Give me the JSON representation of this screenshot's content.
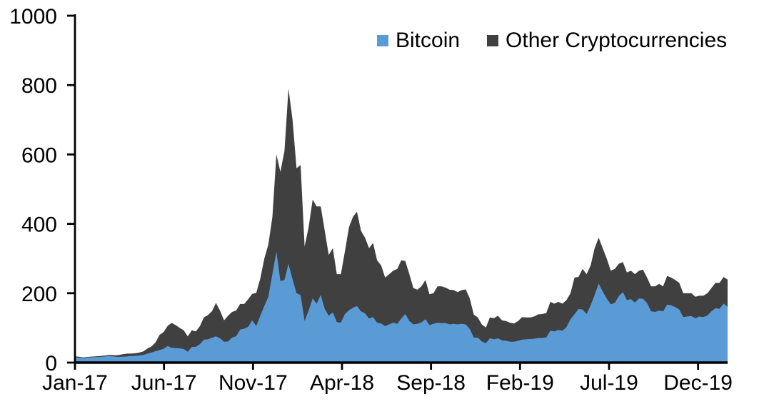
{
  "figure": {
    "background": "#ffffff",
    "text_color": "#000000",
    "legend": [
      {
        "label": "Bitcoin",
        "color": "#5B9BD5"
      },
      {
        "label": "Other Cryptocurrencies",
        "color": "#404040"
      }
    ]
  },
  "chart_data": {
    "type": "area",
    "stacked": true,
    "title": "",
    "xlabel": "",
    "ylabel": "",
    "grid": false,
    "legend_position": "top-right",
    "x_unit": "weekly points from Jan-2017 to mid-Feb-2020, values in billions USD",
    "y_axis": {
      "range": [
        0,
        1000
      ],
      "ticks": [
        0,
        200,
        400,
        600,
        800,
        1000
      ]
    },
    "x_axis": {
      "end_month": 36.66,
      "ticks": [
        {
          "label": "Jan-17",
          "month": 0
        },
        {
          "label": "Jun-17",
          "month": 5
        },
        {
          "label": "Nov-17",
          "month": 10
        },
        {
          "label": "Apr-18",
          "month": 15
        },
        {
          "label": "Sep-18",
          "month": 20
        },
        {
          "label": "Feb-19",
          "month": 25
        },
        {
          "label": "Jul-19",
          "month": 30
        },
        {
          "label": "Dec-19",
          "month": 35
        }
      ]
    },
    "series": [
      {
        "name": "Bitcoin",
        "color": "#5B9BD5",
        "values": [
          15.5,
          14.5,
          13,
          14.2,
          15.2,
          16,
          16.3,
          17.2,
          18.5,
          18.5,
          17,
          16.5,
          17,
          18,
          19,
          19.5,
          20.5,
          22,
          26,
          29,
          33,
          36,
          40,
          48,
          42.5,
          42,
          41,
          39,
          31.5,
          45,
          45.5,
          53,
          66,
          67,
          71.5,
          76,
          70,
          60,
          61,
          72,
          76,
          95,
          98,
          103,
          122,
          105,
          135,
          163,
          190,
          255,
          320,
          235,
          238,
          285,
          240,
          200,
          195,
          120,
          150,
          185,
          170,
          195,
          155,
          135,
          145,
          117,
          115,
          140,
          151,
          158,
          163,
          148,
          142,
          127,
          131,
          115,
          113,
          105,
          110,
          115,
          112,
          127,
          140,
          120,
          110,
          112,
          116,
          125,
          108,
          112,
          115,
          114,
          114,
          110,
          112,
          110,
          112,
          110,
          97,
          72,
          72,
          61,
          56,
          70,
          67,
          70,
          64,
          63,
          60,
          60,
          63,
          66,
          67,
          68,
          69,
          71,
          71,
          72.5,
          92,
          90,
          94,
          92,
          102,
          125,
          139,
          155,
          153,
          140,
          165,
          195,
          228,
          205,
          185,
          168,
          172,
          192,
          203,
          180,
          183,
          173,
          185,
          184,
          172,
          148,
          146,
          150,
          148,
          167,
          165,
          160,
          153,
          131,
          133,
          134,
          128,
          133,
          131,
          136,
          148,
          157,
          155,
          170,
          161
        ]
      },
      {
        "name": "Other Cryptocurrencies",
        "color": "#404040",
        "values": [
          2.3,
          2.5,
          2,
          2,
          2.1,
          2.2,
          2.4,
          2.6,
          3,
          3.5,
          4,
          5.5,
          7.5,
          8,
          7,
          7.5,
          8.5,
          10.5,
          15,
          17.5,
          25,
          44,
          48,
          58,
          72,
          66,
          59,
          54,
          44,
          48,
          44.5,
          52,
          64,
          70,
          76.5,
          96,
          80,
          62,
          74,
          74,
          74,
          74,
          71,
          80,
          76,
          96,
          107,
          137,
          150,
          165,
          280,
          315,
          372,
          505,
          460,
          360,
          375,
          215,
          240,
          285,
          280,
          255,
          225,
          175,
          185,
          138,
          140,
          180,
          239,
          262,
          272,
          232,
          218,
          203,
          214,
          180,
          167,
          140,
          145,
          150,
          158,
          168,
          153,
          135,
          105,
          98,
          104,
          113,
          89,
          88,
          105,
          106,
          102,
          100,
          97,
          93,
          97,
          101,
          88,
          66,
          58,
          49,
          45,
          60,
          61,
          65,
          58,
          57,
          55,
          53,
          57,
          65,
          63,
          62,
          64,
          68,
          69,
          70.5,
          83,
          80,
          81,
          78,
          78,
          75,
          106,
          92,
          117,
          115,
          115,
          135,
          132,
          125,
          115,
          97,
          98,
          93,
          87,
          80,
          82,
          82,
          80,
          84,
          73,
          72,
          74,
          77,
          72,
          83,
          80,
          78,
          77,
          69,
          67,
          66,
          62,
          60,
          62,
          64,
          67,
          73,
          75,
          77,
          78
        ]
      }
    ]
  }
}
